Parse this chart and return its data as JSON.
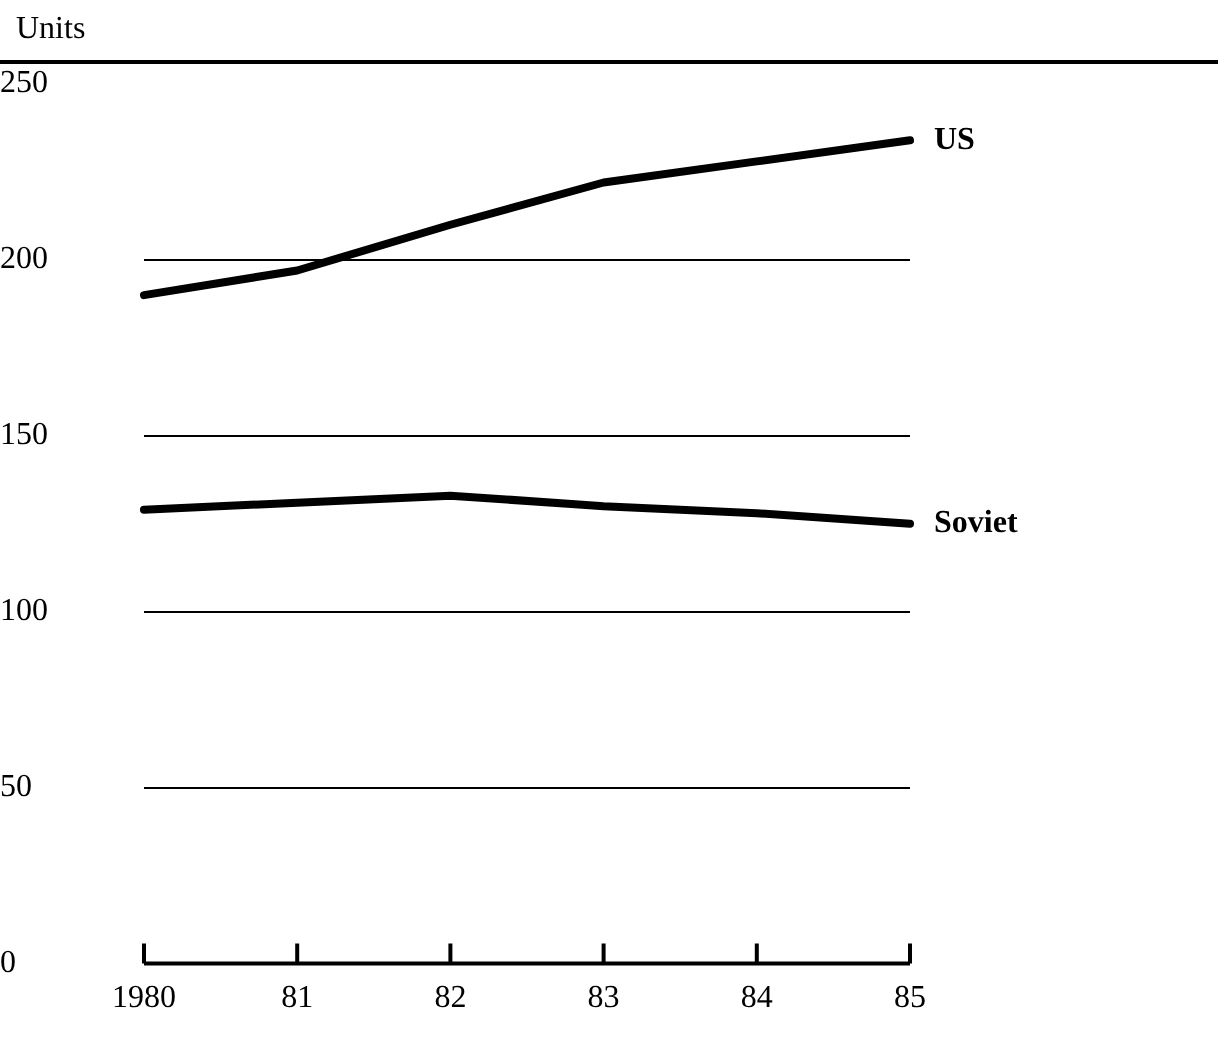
{
  "chart_data": {
    "type": "line",
    "ylabel": "Units",
    "categories": [
      "1980",
      "81",
      "82",
      "83",
      "84",
      "85"
    ],
    "series": [
      {
        "name": "US",
        "color": "#000000",
        "values": [
          190,
          197,
          210,
          222,
          228,
          234
        ]
      },
      {
        "name": "Soviet",
        "color": "#000000",
        "values": [
          129,
          131,
          133,
          130,
          128,
          125
        ]
      }
    ],
    "ylim": [
      0,
      250
    ],
    "yticks": [
      0,
      50,
      100,
      150,
      200,
      250
    ],
    "grid": "y",
    "legend": false,
    "marker": "none",
    "line_style": "solid"
  }
}
